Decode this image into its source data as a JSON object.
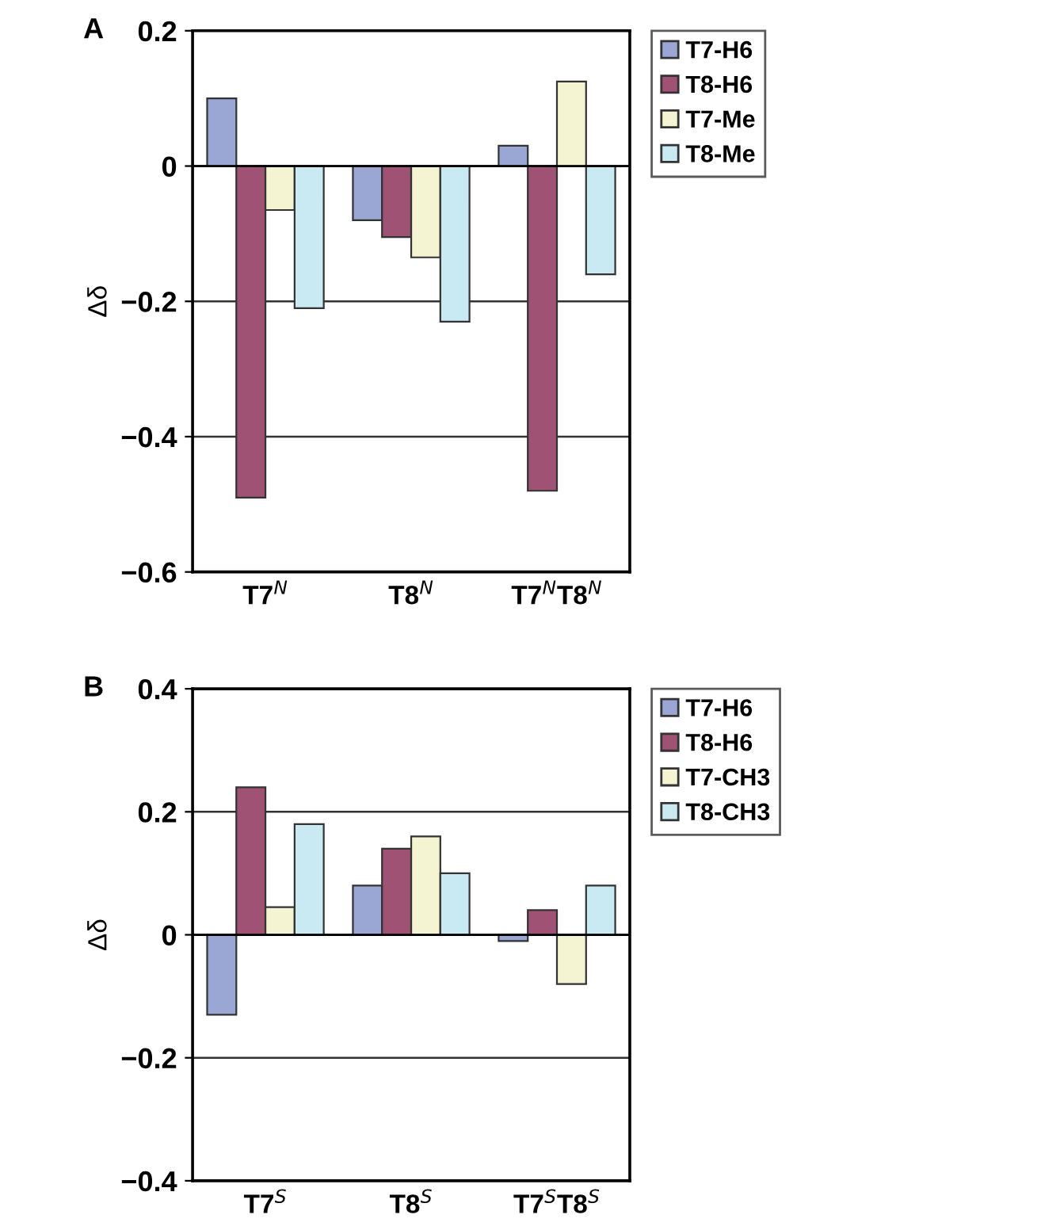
{
  "chart_data": [
    {
      "type": "bar",
      "title": "A",
      "ylabel": "Δδ",
      "categories": [
        "T7$^{N}$",
        "T8$^{N}$",
        "T7$^{N}$T8$^{N}$"
      ],
      "series": [
        {
          "name": "T7-H6",
          "color": "#9aa6d4",
          "values": [
            0.1,
            -0.08,
            0.03
          ]
        },
        {
          "name": "T8-H6",
          "color": "#a05274",
          "values": [
            -0.49,
            -0.105,
            -0.48
          ]
        },
        {
          "name": "T7-Me",
          "color": "#f4f3d2",
          "values": [
            -0.065,
            -0.135,
            0.125
          ]
        },
        {
          "name": "T8-Me",
          "color": "#c9e9f3",
          "values": [
            -0.21,
            -0.23,
            -0.16
          ]
        }
      ],
      "ylim": [
        -0.6,
        0.2
      ],
      "yticks": [
        {
          "value": -0.6,
          "label": "−0.6"
        },
        {
          "value": -0.4,
          "label": "−0.4"
        },
        {
          "value": -0.2,
          "label": "−0.2"
        },
        0,
        0.2
      ],
      "grid": "y",
      "legend": "right"
    },
    {
      "type": "bar",
      "title": "B",
      "ylabel": "Δδ",
      "categories": [
        "T7$^{S}$",
        "T8$^{S}$",
        "T7$^{S}$T8$^{S}$"
      ],
      "series": [
        {
          "name": "T7-H6",
          "color": "#9aa6d4",
          "values": [
            -0.13,
            0.08,
            -0.01
          ]
        },
        {
          "name": "T8-H6",
          "color": "#a05274",
          "values": [
            0.24,
            0.14,
            0.04
          ]
        },
        {
          "name": "T7-CH3",
          "color": "#f4f3d2",
          "values": [
            0.045,
            0.16,
            -0.08
          ]
        },
        {
          "name": "T8-CH3",
          "color": "#c9e9f3",
          "values": [
            0.18,
            0.1,
            0.08
          ]
        }
      ],
      "ylim": [
        -0.4,
        0.4
      ],
      "yticks": [
        {
          "value": -0.4,
          "label": "−0.4"
        },
        {
          "value": -0.2,
          "label": "−0.2"
        },
        0,
        0.2,
        0.4
      ],
      "grid": "y",
      "legend": "right"
    }
  ]
}
